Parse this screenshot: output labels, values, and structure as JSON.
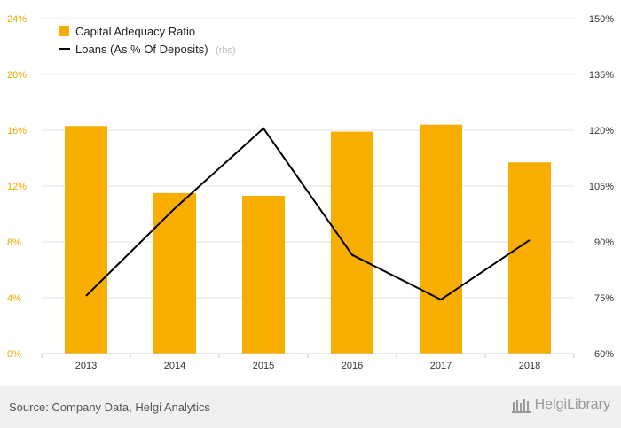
{
  "chart_data": {
    "type": "bar",
    "categories": [
      "2013",
      "2014",
      "2015",
      "2016",
      "2017",
      "2018"
    ],
    "series": [
      {
        "name": "Capital Adequacy Ratio",
        "type": "bar",
        "axis": "left",
        "color": "#f7ae00",
        "values": [
          16.3,
          11.5,
          11.3,
          15.9,
          16.4,
          13.7
        ]
      },
      {
        "name": "Loans (As % Of Deposits)",
        "type": "line",
        "axis": "right",
        "color": "#000000",
        "values": [
          75.5,
          99.0,
          120.5,
          86.5,
          74.5,
          90.5
        ]
      }
    ],
    "legend": {
      "position": "top-left",
      "rhs_suffix": "(rhs)"
    },
    "y_left": {
      "ylim": [
        0,
        24
      ],
      "ticks": [
        "0%",
        "4%",
        "8%",
        "12%",
        "16%",
        "20%",
        "24%"
      ],
      "color": "#f2a900"
    },
    "y_right": {
      "ylim": [
        60,
        150
      ],
      "ticks": [
        "60%",
        "75%",
        "90%",
        "105%",
        "120%",
        "135%",
        "150%"
      ]
    },
    "grid": true
  },
  "footer": {
    "source": "Source: Company Data, Helgi Analytics",
    "brand": "HelgiLibrary"
  }
}
